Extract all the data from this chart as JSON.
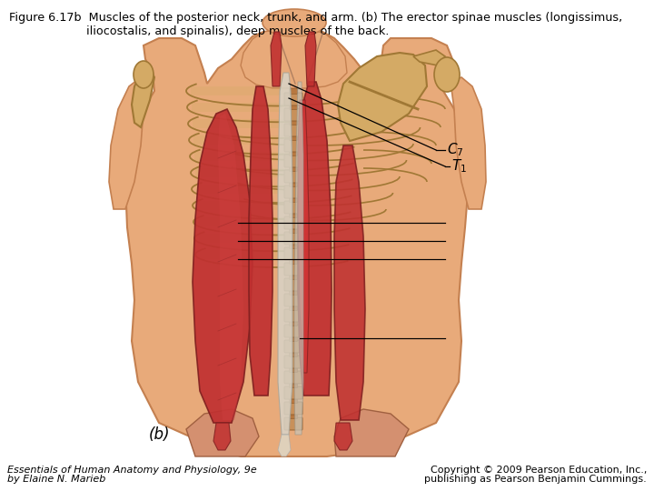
{
  "title_line1": "Figure 6.17b  Muscles of the posterior neck, trunk, and arm. (b) The erector spinae muscles (longissimus,",
  "title_line2": "iliocostalis, and spinalis), deep muscles of the back.",
  "footer_left_line1": "Essentials of Human Anatomy and Physiology, 9e",
  "footer_left_line2": "by Elaine N. Marieb",
  "footer_right_line1": "Copyright © 2009 Pearson Education, Inc.,",
  "footer_right_line2": "publishing as Pearson Benjamin Cummings.",
  "label_b": "(b)",
  "bg_color": "#ffffff",
  "text_color": "#000000",
  "skin_color": "#E8AA7A",
  "skin_edge": "#C48050",
  "muscle_red": "#C03030",
  "muscle_red2": "#A82020",
  "muscle_edge": "#802020",
  "bone_color": "#D4AA65",
  "bone_edge": "#A07835",
  "tendon_color": "#D8D0C0",
  "title_fontsize": 9.2,
  "footer_fontsize": 8.0
}
